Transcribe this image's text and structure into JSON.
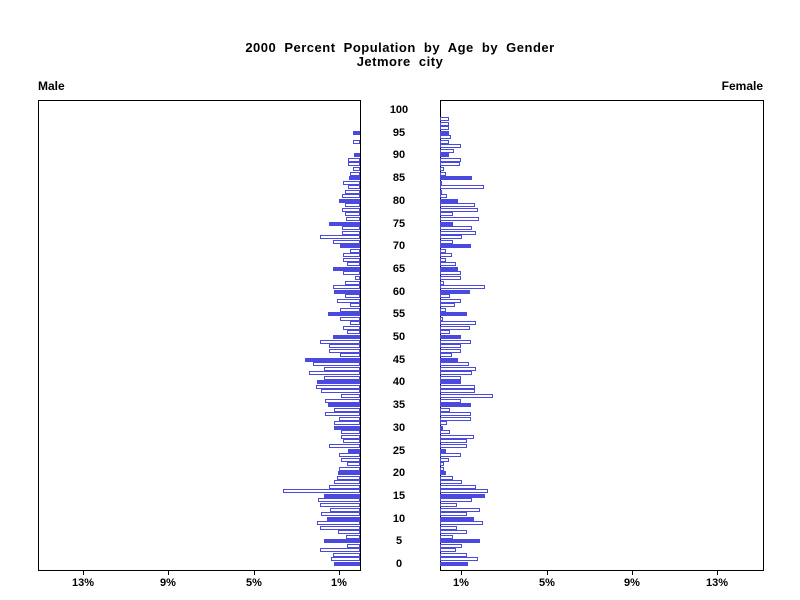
{
  "title": {
    "line1": "2000 Percent Population by Age by Gender",
    "line2": "Jetmore city"
  },
  "panel_labels": {
    "left": "Male",
    "right": "Female"
  },
  "colors": {
    "bar_blue": "#4a4ae0",
    "axis_black": "#000000",
    "background": "#ffffff"
  },
  "chart_data": {
    "type": "bar",
    "subtype": "population-pyramid",
    "title": "2000 Percent Population by Age by Gender",
    "subtitle": "Jetmore city",
    "orientation": "horizontal-mirrored",
    "x_unit": "percent of total population",
    "x_ticks_percent": [
      13,
      9,
      5,
      1
    ],
    "x_tick_labels": [
      "13%",
      "9%",
      "5%",
      "1%"
    ],
    "xlim_each_side": [
      0,
      15
    ],
    "age_min": 0,
    "age_max": 100,
    "age_tick_step": 5,
    "age_tick_labels": [
      "0",
      "5",
      "10",
      "15",
      "20",
      "25",
      "30",
      "35",
      "40",
      "45",
      "50",
      "55",
      "60",
      "65",
      "70",
      "75",
      "80",
      "85",
      "90",
      "95",
      "100"
    ],
    "solid_fill_rule": "ages divisible by 5 are solid blue; other single-year bars are white with blue outline",
    "series": [
      {
        "name": "Male",
        "side": "left",
        "values_by_age": [
          1.2,
          1.35,
          1.25,
          1.9,
          0.6,
          1.7,
          0.65,
          1.05,
          1.9,
          2.0,
          1.55,
          1.85,
          1.4,
          1.9,
          1.95,
          1.7,
          3.6,
          1.45,
          1.2,
          1.1,
          1.05,
          1.0,
          0.6,
          0.9,
          1.0,
          0.55,
          1.45,
          0.8,
          0.9,
          0.9,
          1.2,
          1.2,
          1.0,
          1.65,
          1.2,
          1.5,
          1.65,
          0.9,
          1.85,
          2.05,
          2.0,
          1.7,
          2.4,
          1.7,
          2.2,
          2.6,
          0.95,
          1.45,
          1.45,
          1.9,
          1.25,
          0.6,
          0.8,
          0.45,
          0.95,
          1.5,
          0.95,
          0.45,
          1.1,
          0.7,
          1.2,
          1.25,
          0.7,
          0.25,
          0.8,
          1.25,
          0.6,
          0.8,
          0.8,
          0.45,
          0.95,
          1.25,
          1.9,
          0.85,
          0.85,
          1.45,
          0.65,
          0.7,
          0.85,
          0.7,
          1.0,
          0.85,
          0.7,
          0.55,
          0.8,
          0.5,
          0.45,
          0.35,
          0.55,
          0.55,
          0.3,
          0,
          0,
          0.35,
          0,
          0.35,
          0,
          0,
          0,
          0,
          0
        ]
      },
      {
        "name": "Female",
        "side": "right",
        "values_by_age": [
          1.3,
          1.8,
          1.25,
          0.75,
          1.05,
          1.9,
          0.6,
          1.25,
          0.8,
          2.0,
          1.6,
          1.25,
          1.9,
          0.8,
          1.5,
          2.1,
          2.25,
          1.7,
          1.05,
          0.6,
          0.3,
          0.2,
          0.2,
          0.4,
          1.0,
          0.3,
          1.25,
          1.25,
          1.6,
          0.45,
          0.15,
          0.35,
          1.45,
          1.45,
          0.45,
          1.45,
          1.0,
          2.5,
          1.65,
          1.65,
          1.0,
          1.0,
          1.5,
          1.7,
          1.35,
          0.85,
          0.55,
          1.0,
          1.0,
          1.45,
          1.0,
          0.45,
          1.4,
          1.7,
          0.15,
          1.25,
          0.3,
          0.7,
          1.0,
          0.45,
          1.4,
          2.1,
          0.2,
          1.0,
          1.0,
          0.85,
          0.75,
          0.3,
          0.55,
          0.3,
          1.45,
          0.6,
          1.05,
          1.7,
          1.5,
          0.6,
          1.85,
          0.6,
          1.8,
          1.65,
          0.85,
          0.35,
          0.1,
          2.05,
          0.1,
          1.5,
          0.3,
          0.2,
          0.95,
          1.0,
          0.4,
          0.65,
          1.0,
          0.4,
          0.5,
          0.4,
          0.4,
          0.4,
          0.4,
          0,
          0
        ]
      }
    ]
  }
}
